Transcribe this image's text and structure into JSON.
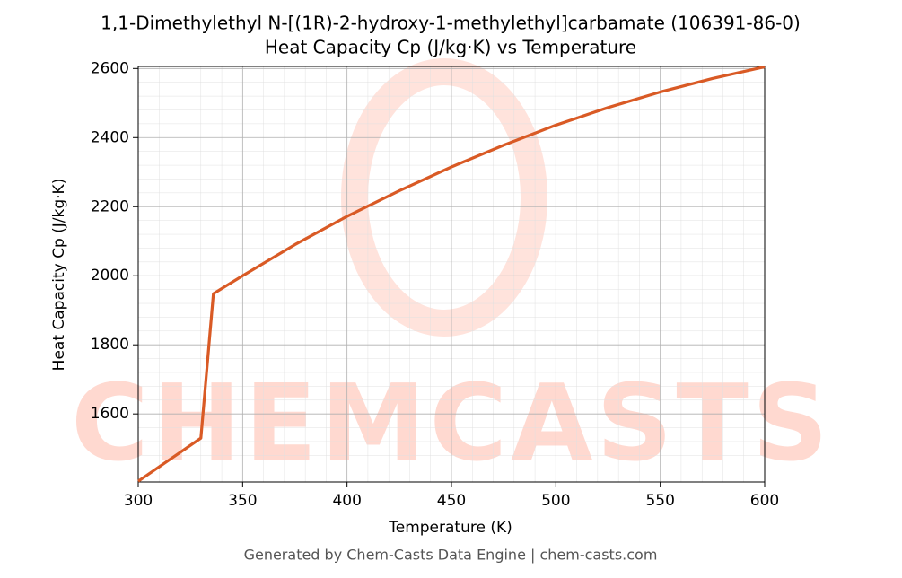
{
  "chart_data": {
    "type": "line",
    "title": "1,1-Dimethylethyl N-[(1R)-2-hydroxy-1-methylethyl]carbamate (106391-86-0)",
    "subtitle": "Heat Capacity Cp (J/kg·K) vs Temperature",
    "x_label": "Temperature (K)",
    "y_label": "Heat Capacity Cp (J/kg·K)",
    "footer": "Generated by Chem-Casts Data Engine | chem-casts.com",
    "watermark": "CHEMCASTS",
    "x": [
      300,
      330,
      336,
      350,
      375,
      400,
      425,
      450,
      475,
      500,
      525,
      550,
      575,
      600
    ],
    "values": [
      1405,
      1530,
      1948,
      2000,
      2090,
      2172,
      2246,
      2315,
      2378,
      2436,
      2487,
      2532,
      2571,
      2605
    ],
    "color": "#d95a25",
    "xlim": [
      300,
      600
    ],
    "xticks": [
      300,
      350,
      400,
      450,
      500,
      550,
      600
    ],
    "ylim": [
      1403,
      2606
    ],
    "yticks": [
      1600,
      1800,
      2000,
      2200,
      2400,
      2600
    ],
    "grid": true
  }
}
